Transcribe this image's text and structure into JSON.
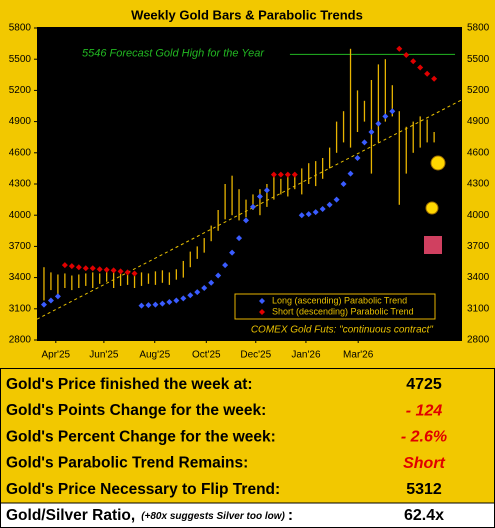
{
  "chart_data": {
    "type": "range-bar",
    "title": "Weekly Gold Bars & Parabolic Trends",
    "xlim": [
      -1,
      60
    ],
    "xticks": [
      {
        "value": 1.7,
        "label": "Apr'25"
      },
      {
        "value": 8.6,
        "label": "Jun'25"
      },
      {
        "value": 15.9,
        "label": "Aug'25"
      },
      {
        "value": 23.3,
        "label": "Oct'25"
      },
      {
        "value": 30.4,
        "label": "Dec'25"
      },
      {
        "value": 37.6,
        "label": "Jan'26"
      },
      {
        "value": 45.1,
        "label": "Mar'26"
      }
    ],
    "ylim": [
      2800,
      5800
    ],
    "yticks": [
      2800,
      3100,
      3400,
      3700,
      4000,
      4300,
      4600,
      4900,
      5200,
      5500,
      5800
    ],
    "bar_color": "#e8b400",
    "lows": [
      3180,
      3280,
      3220,
      3300,
      3280,
      3300,
      3320,
      3300,
      3340,
      3360,
      3300,
      3320,
      3330,
      3300,
      3320,
      3340,
      3330,
      3350,
      3330,
      3380,
      3400,
      3500,
      3580,
      3640,
      3750,
      3850,
      3960,
      4000,
      3950,
      3980,
      4050,
      4000,
      4080,
      4150,
      4200,
      4180,
      4250,
      4200,
      4300,
      4280,
      4350,
      4450,
      4600,
      4700,
      4650,
      4800,
      4900,
      4400,
      4700,
      4900,
      4950,
      4100,
      4400,
      4600,
      4650,
      4700,
      4700
    ],
    "highs": [
      3500,
      3450,
      3430,
      3440,
      3420,
      3430,
      3440,
      3450,
      3440,
      3470,
      3450,
      3440,
      3460,
      3420,
      3450,
      3440,
      3460,
      3470,
      3450,
      3480,
      3560,
      3650,
      3700,
      3780,
      3900,
      4050,
      4300,
      4380,
      4250,
      4150,
      4200,
      4250,
      4300,
      4380,
      4350,
      4400,
      4380,
      4450,
      4500,
      4520,
      4550,
      4650,
      4900,
      5000,
      5600,
      5200,
      5100,
      5300,
      5450,
      5500,
      5250,
      5000,
      4850,
      4900,
      4950,
      4920,
      4800
    ],
    "series": [
      {
        "name": "Long (ascending) Parabolic Trend",
        "color": "#3a5cff",
        "values": [
          3140,
          3180,
          3220,
          null,
          null,
          null,
          null,
          null,
          null,
          null,
          null,
          null,
          null,
          null,
          3130,
          3135,
          3140,
          3150,
          3165,
          3180,
          3200,
          3230,
          3260,
          3300,
          3350,
          3420,
          3520,
          3640,
          3780,
          3950,
          4080,
          4180,
          4240,
          null,
          null,
          null,
          null,
          4000,
          4010,
          4030,
          4060,
          4100,
          4150,
          4300,
          4400,
          4550,
          4700,
          4800,
          4880,
          4950,
          5000,
          null,
          null,
          null,
          null,
          null,
          null
        ]
      },
      {
        "name": "Short (descending) Parabolic Trend",
        "color": "#e00000",
        "values": [
          null,
          null,
          null,
          3520,
          3510,
          3500,
          3490,
          3490,
          3480,
          3475,
          3470,
          3460,
          3450,
          3440,
          null,
          null,
          null,
          null,
          null,
          null,
          null,
          null,
          null,
          null,
          null,
          null,
          null,
          null,
          null,
          null,
          null,
          null,
          null,
          4390,
          4390,
          4390,
          4390,
          null,
          null,
          null,
          null,
          null,
          null,
          null,
          null,
          null,
          null,
          null,
          null,
          null,
          null,
          5600,
          5540,
          5480,
          5420,
          5360,
          5312
        ]
      }
    ],
    "trend": {
      "x": [
        -1,
        60
      ],
      "values": [
        3000,
        5110
      ],
      "color": "#e8c000"
    },
    "forecast": {
      "value": 5546,
      "x": [
        35.3,
        59
      ],
      "label": "5546 Forecast Gold High for the Year",
      "color": "#22b822"
    },
    "source": "COMEX Gold Futs: \"continuous contract\""
  },
  "stats": [
    {
      "label": "Gold's Price finished the week at:",
      "value": 4725,
      "color": "#000000"
    },
    {
      "label": "Gold's Points Change for the week:",
      "value": -124,
      "value_label": "- 124",
      "color": "#e00000"
    },
    {
      "label": "Gold's Percent Change for the week:",
      "value": -2.6,
      "value_label": "- 2.6%",
      "color": "#e00000"
    },
    {
      "label": "Gold's Parabolic Trend Remains:",
      "value": "Short",
      "color": "#e00000"
    },
    {
      "label": "Gold's Price Necessary to Flip Trend:",
      "value": 5312,
      "color": "#000000"
    },
    {
      "label": "Gold/Silver Ratio,",
      "note": "(+80x suggests Silver too low)",
      "suffix": ":",
      "value": 62.4,
      "value_label": "62.4x",
      "color": "#000000"
    }
  ]
}
